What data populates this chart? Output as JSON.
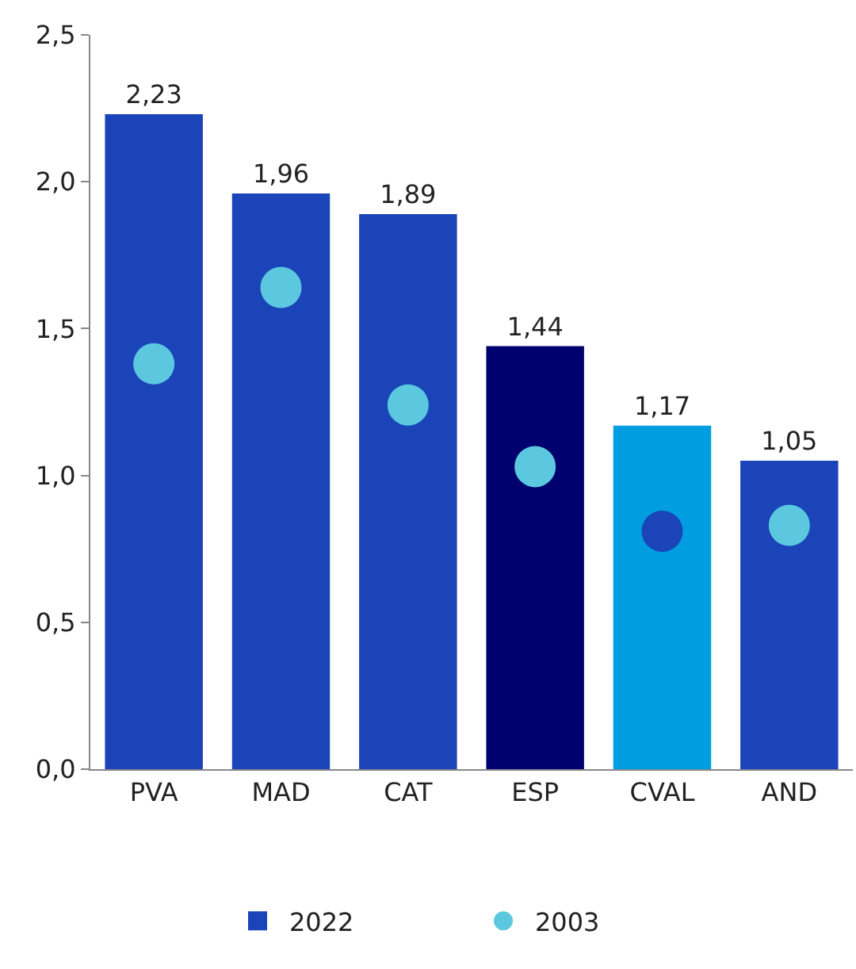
{
  "chart_data": {
    "type": "bar",
    "categories": [
      "PVA",
      "MAD",
      "CAT",
      "ESP",
      "CVAL",
      "AND"
    ],
    "series": [
      {
        "name": "2022",
        "color": "#1a44b8",
        "colors": [
          "#1a44b8",
          "#1a44b8",
          "#1a44b8",
          "#00006e",
          "#009ee0",
          "#1a44b8"
        ],
        "values": [
          2.23,
          1.96,
          1.89,
          1.44,
          1.17,
          1.05
        ],
        "value_labels": [
          "2,23",
          "1,96",
          "1,89",
          "1,44",
          "1,17",
          "1,05"
        ]
      },
      {
        "name": "2003",
        "type": "scatter",
        "color": "#5bc8e0",
        "colors": [
          "#5bc8e0",
          "#5bc8e0",
          "#5bc8e0",
          "#5bc8e0",
          "#1a44b8",
          "#5bc8e0"
        ],
        "x": [
          "PVA",
          "MAD",
          "CAT",
          "ESP",
          "CVAL",
          "AND"
        ],
        "values": [
          1.38,
          1.64,
          1.24,
          1.03,
          0.81,
          0.83
        ]
      }
    ],
    "ylim": [
      0,
      2.5
    ],
    "yticks": [
      {
        "value": 0,
        "label": "0,0"
      },
      {
        "value": 0.5,
        "label": "0,5"
      },
      {
        "value": 1,
        "label": "1,0"
      },
      {
        "value": 1.5,
        "label": "1,5"
      },
      {
        "value": 2,
        "label": "2,0"
      },
      {
        "value": 2.5,
        "label": "2,5"
      }
    ],
    "grid": false,
    "legend": "bottom",
    "marker": "circle"
  }
}
